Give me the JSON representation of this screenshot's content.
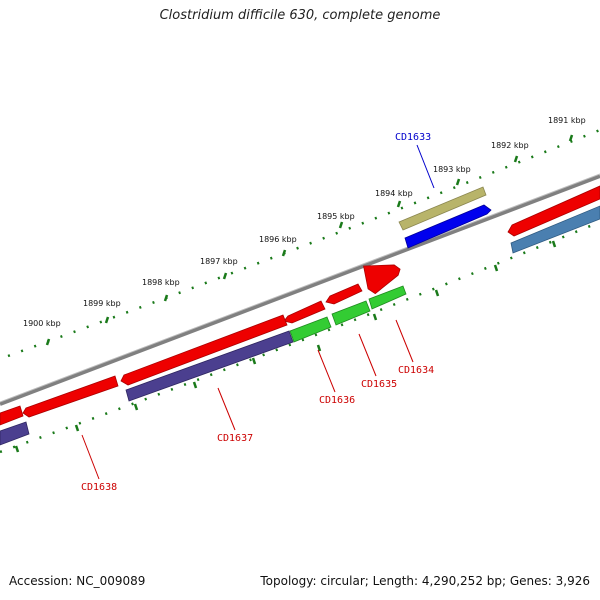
{
  "title": "Clostridium difficile 630, complete genome",
  "footer": {
    "accession": "Accession: NC_009089",
    "summary": "Topology: circular; Length: 4,290,252 bp; Genes: 3,926"
  },
  "colors": {
    "backbone": "#808080",
    "tick": "#1a7a1a",
    "label_red": "#cc0000",
    "label_blue": "#0000cc",
    "red_gene": "#ee0000",
    "navy_gene": "#4b3f8f",
    "green_gene": "#33cc33",
    "olive_gene": "#b8b46a",
    "blue_gene": "#0000ee",
    "steel_gene": "#4a7fb0"
  },
  "kbp_labels": [
    "1891 kbp",
    "1892 kbp",
    "1893 kbp",
    "1894 kbp",
    "1895 kbp",
    "1896 kbp",
    "1897 kbp",
    "1898 kbp",
    "1899 kbp",
    "1900 kbp"
  ],
  "gene_labels": [
    "CD1633",
    "CD1634",
    "CD1635",
    "CD1636",
    "CD1637",
    "CD1638"
  ]
}
